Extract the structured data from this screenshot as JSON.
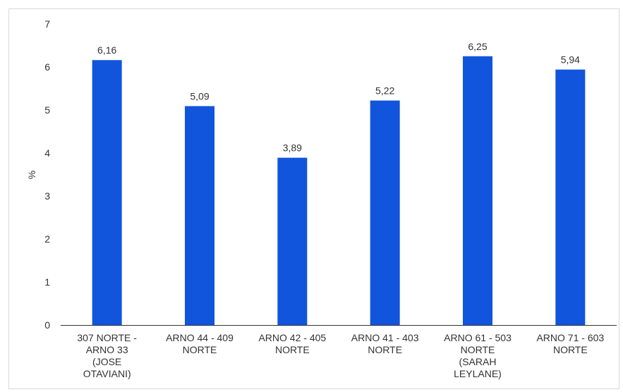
{
  "chart_data": {
    "type": "bar",
    "title": "",
    "xlabel": "",
    "ylabel": "%",
    "ylim": [
      0,
      7
    ],
    "yticks": [
      "0",
      "1",
      "2",
      "3",
      "4",
      "5",
      "6",
      "7"
    ],
    "categories": [
      [
        "307 NORTE -",
        "ARNO 33",
        "(JOSE",
        "OTAVIANI)"
      ],
      [
        "ARNO 44 - 409",
        "NORTE"
      ],
      [
        "ARNO 42 - 405",
        "NORTE"
      ],
      [
        "ARNO 41 - 403",
        "NORTE"
      ],
      [
        "ARNO 61 - 503",
        "NORTE",
        "(SARAH",
        "LEYLANE)"
      ],
      [
        "ARNO 71 - 603",
        "NORTE"
      ]
    ],
    "values": [
      6.16,
      5.09,
      3.89,
      5.22,
      6.25,
      5.94
    ],
    "data_labels": [
      "6,16",
      "5,09",
      "3,89",
      "5,22",
      "6,25",
      "5,94"
    ],
    "grid": false,
    "colors": {
      "bar": "#1155dd",
      "baseline": "#333333"
    }
  }
}
